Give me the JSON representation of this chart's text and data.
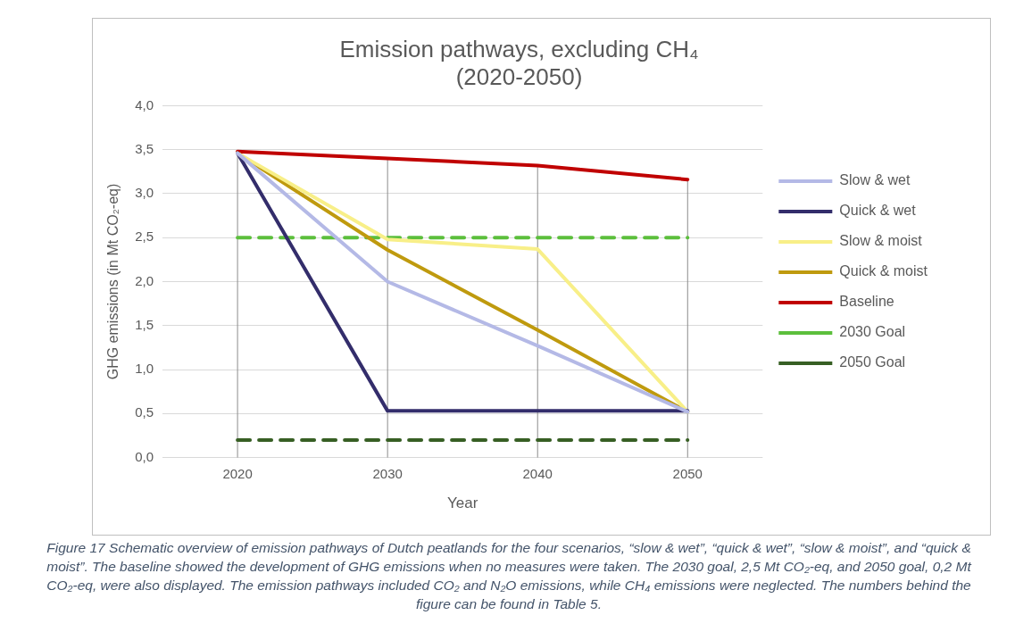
{
  "chart_data": {
    "type": "line",
    "title": "Emission pathways, excluding CH₄\n(2020-2050)",
    "xlabel": "Year",
    "ylabel": "GHG emissions (in Mt CO₂-eq)",
    "categories": [
      "2020",
      "2030",
      "2040",
      "2050"
    ],
    "series": [
      {
        "name": "Slow & wet",
        "color": "#b4b9e6",
        "values": [
          3.46,
          2.0,
          1.27,
          0.52
        ]
      },
      {
        "name": "Quick & wet",
        "color": "#332d6b",
        "values": [
          3.46,
          0.53,
          0.53,
          0.53
        ]
      },
      {
        "name": "Slow & moist",
        "color": "#f8ef88",
        "values": [
          3.46,
          2.48,
          2.37,
          0.52
        ]
      },
      {
        "name": "Quick & moist",
        "color": "#bf9a0e",
        "values": [
          3.46,
          2.36,
          1.45,
          0.52
        ]
      },
      {
        "name": "Baseline",
        "color": "#c00000",
        "values": [
          3.48,
          3.4,
          3.32,
          3.16
        ]
      },
      {
        "name": "2030 Goal",
        "color": "#5cbf3c",
        "values": [
          2.5,
          2.5,
          2.5,
          2.5
        ],
        "line_style": "dashed"
      },
      {
        "name": "2050 Goal",
        "color": "#375f24",
        "values": [
          0.2,
          0.2,
          0.2,
          0.2
        ],
        "line_style": "dashed"
      }
    ],
    "ylim": [
      0,
      4
    ],
    "yticks": [
      {
        "value": 0,
        "label": "0,0"
      },
      {
        "value": 0.5,
        "label": "0,5"
      },
      {
        "value": 1,
        "label": "1,0"
      },
      {
        "value": 1.5,
        "label": "1,5"
      },
      {
        "value": 2,
        "label": "2,0"
      },
      {
        "value": 2.5,
        "label": "2,5"
      },
      {
        "value": 3,
        "label": "3,0"
      },
      {
        "value": 3.5,
        "label": "3,5"
      },
      {
        "value": 4,
        "label": "4,0"
      }
    ],
    "grid": true,
    "legend": "right",
    "marker": "none",
    "line_style": "solid",
    "annotations": [
      "Figure 17 Schematic overview of emission pathways of Dutch peatlands for the four scenarios, “slow & wet”, “quick & wet”, “slow & moist”, and “quick & moist”. The baseline showed the development of GHG emissions when no measures were taken. The 2030 goal, 2,5 Mt CO₂-eq, and 2050 goal, 0,2 Mt CO₂-eq, were also displayed.  The emission pathways included CO₂ and N₂O emissions, while CH₄ emissions were neglected. The numbers behind the figure can be found in Table 5."
    ]
  }
}
